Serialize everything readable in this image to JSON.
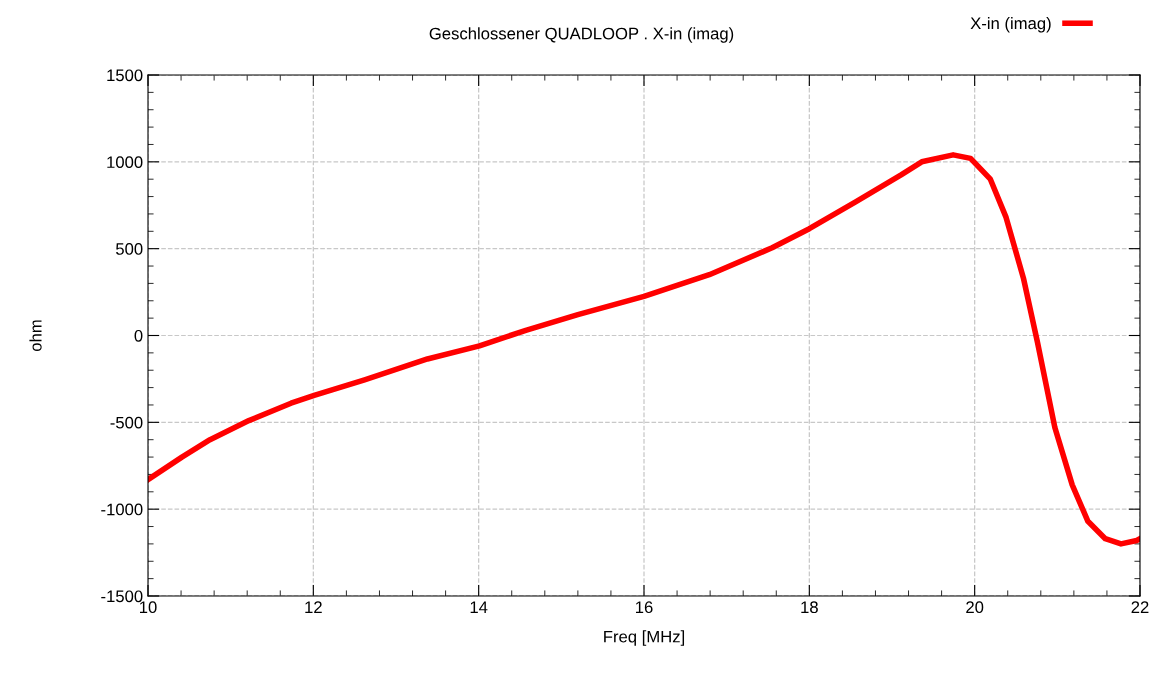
{
  "chart_data": {
    "type": "line",
    "title": "Geschlossener QUADLOOP . X-in (imag)",
    "xlabel": "Freq [MHz]",
    "ylabel": "ohm",
    "series": [
      {
        "name": "X-in (imag)",
        "color": "#ff0000",
        "x": [
          10,
          10.41,
          10.75,
          11.22,
          11.73,
          12.01,
          12.62,
          13.38,
          14.01,
          14.57,
          15.2,
          16,
          16.79,
          17.55,
          18,
          18.56,
          19.11,
          19.36,
          19.74,
          19.95,
          20.19,
          20.38,
          20.59,
          20.76,
          20.97,
          21.18,
          21.37,
          21.58,
          21.77,
          21.96,
          22
        ],
        "values": [
          -830,
          -700,
          -600,
          -490,
          -390,
          -345,
          -255,
          -135,
          -60,
          30,
          120,
          225,
          350,
          505,
          615,
          770,
          925,
          1000,
          1040,
          1020,
          900,
          680,
          330,
          -40,
          -530,
          -860,
          -1070,
          -1170,
          -1200,
          -1180,
          -1170
        ]
      }
    ],
    "xlim": [
      10,
      22
    ],
    "xticks": [
      10,
      12,
      14,
      16,
      18,
      20,
      22
    ],
    "ylim": [
      -1500,
      1500
    ],
    "yticks": [
      -1500,
      -1000,
      -500,
      0,
      500,
      1000,
      1500
    ],
    "grid": true,
    "legend": "top right",
    "line_style": "solid",
    "marker": "none"
  }
}
